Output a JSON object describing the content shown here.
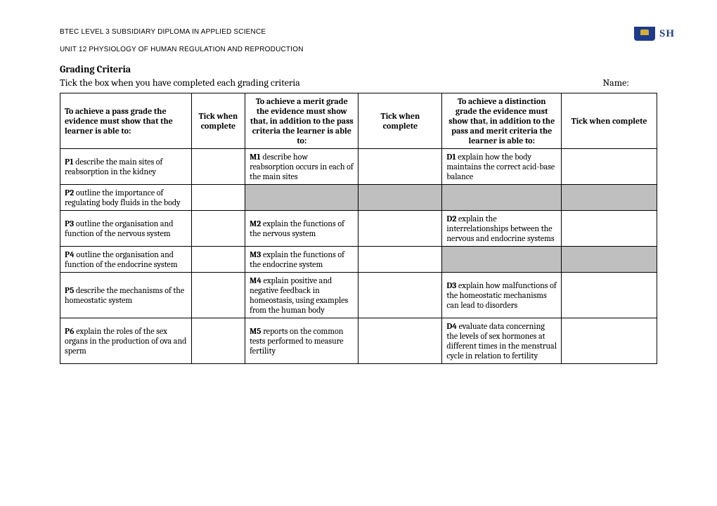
{
  "header": {
    "line1": "BTEC LEVEL 3 SUBSIDIARY DIPLOMA IN APPLIED SCIENCE",
    "line2": "UNIT 12 PHYSIOLOGY OF HUMAN REGULATION AND REPRODUCTION",
    "logo_text": "SH"
  },
  "title": "Grading Criteria",
  "subtitle": {
    "instruction": "Tick the box when you have completed each grading criteria",
    "name_label": "Name:"
  },
  "table": {
    "headers": {
      "pass": "To achieve a pass grade the evidence must show that the learner is able to:",
      "tick1": "Tick when complete",
      "merit": "To achieve a merit grade the evidence must show that, in addition to the pass criteria the learner is able to:",
      "tick2": "Tick when complete",
      "distinction": "To achieve a distinction grade the evidence must show that, in addition to the pass and merit criteria the learner is able to:",
      "tick3": "Tick when complete"
    },
    "rows": [
      {
        "pass_code": "P1",
        "pass_text": " describe the main sites of reabsorption in the kidney",
        "merit_code": "M1",
        "merit_text": " describe how reabsorption occurs in each of the main sites",
        "dist_code": "D1",
        "dist_text": " explain how the body maintains the correct acid-base balance",
        "merit_shaded": false,
        "dist_shaded": false
      },
      {
        "pass_code": "P2",
        "pass_text": " outline the importance of regulating body fluids in the body",
        "merit_code": "",
        "merit_text": "",
        "dist_code": "",
        "dist_text": "",
        "merit_shaded": true,
        "dist_shaded": true
      },
      {
        "pass_code": "P3",
        "pass_text": " outline the organisation and function of the nervous system",
        "merit_code": "M2",
        "merit_text": " explain the functions of the nervous system",
        "dist_code": "D2",
        "dist_text": " explain the interrelationships between the nervous and endocrine systems",
        "merit_shaded": false,
        "dist_shaded": false
      },
      {
        "pass_code": "P4",
        "pass_text": " outline the organisation and function of the endocrine system",
        "merit_code": "M3",
        "merit_text": " explain the functions of the endocrine system",
        "dist_code": "",
        "dist_text": "",
        "merit_shaded": false,
        "dist_shaded": true
      },
      {
        "pass_code": "P5",
        "pass_text": " describe the mechanisms of the homeostatic system",
        "merit_code": "M4",
        "merit_text": " explain positive and negative feedback in homeostasis, using examples from the human body",
        "dist_code": "D3",
        "dist_text": " explain how malfunctions of the homeostatic mechanisms can lead to disorders",
        "merit_shaded": false,
        "dist_shaded": false
      },
      {
        "pass_code": "P6",
        "pass_text": " explain the roles of the sex organs in the production of ova and sperm",
        "merit_code": "M5",
        "merit_text": " reports on the common tests performed to measure fertility",
        "dist_code": "D4",
        "dist_text": " evaluate data concerning the levels of sex hormones at different times in the menstrual cycle in relation to fertility",
        "merit_shaded": false,
        "dist_shaded": false
      }
    ]
  }
}
